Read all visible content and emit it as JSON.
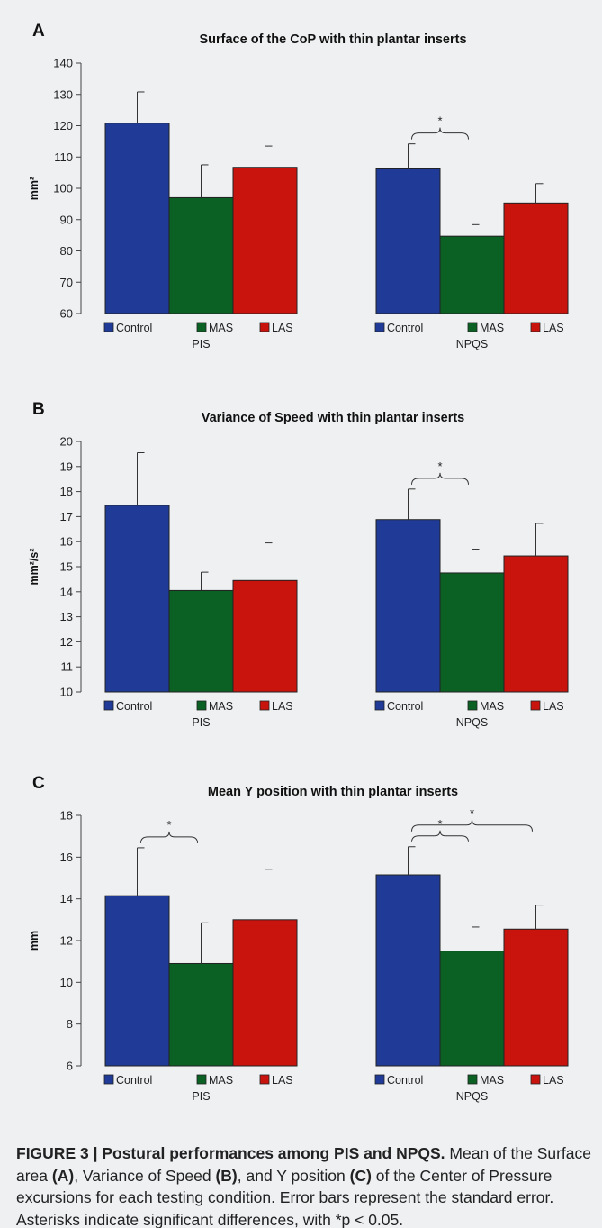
{
  "chart_data": [
    {
      "type": "bar",
      "panel_letter": "A",
      "title": "Surface of the CoP with thin plantar inserts",
      "ylabel": "mm²",
      "ylim": [
        60,
        140
      ],
      "yticks": [
        60,
        70,
        80,
        90,
        100,
        110,
        120,
        130,
        140
      ],
      "groups": [
        {
          "name": "PIS",
          "categories": [
            "Control",
            "MAS",
            "LAS"
          ],
          "values": [
            120.8,
            97.0,
            106.7
          ],
          "errors": [
            10.0,
            10.5,
            6.8
          ]
        },
        {
          "name": "NPQS",
          "categories": [
            "Control",
            "MAS",
            "LAS"
          ],
          "values": [
            106.2,
            84.7,
            95.3
          ],
          "errors": [
            8.0,
            3.7,
            6.2
          ]
        }
      ],
      "significance": [
        {
          "group": "NPQS",
          "from": "Control",
          "to": "MAS",
          "label": "*"
        }
      ]
    },
    {
      "type": "bar",
      "panel_letter": "B",
      "title": "Variance of Speed with thin plantar inserts",
      "ylabel": "mm²/s²",
      "ylim": [
        10,
        20
      ],
      "yticks": [
        10,
        11,
        12,
        13,
        14,
        15,
        16,
        17,
        18,
        19,
        20
      ],
      "groups": [
        {
          "name": "PIS",
          "categories": [
            "Control",
            "MAS",
            "LAS"
          ],
          "values": [
            17.45,
            14.05,
            14.45
          ],
          "errors": [
            2.1,
            0.73,
            1.5
          ]
        },
        {
          "name": "NPQS",
          "categories": [
            "Control",
            "MAS",
            "LAS"
          ],
          "values": [
            16.88,
            14.75,
            15.43
          ],
          "errors": [
            1.22,
            0.95,
            1.3
          ]
        }
      ],
      "significance": [
        {
          "group": "NPQS",
          "from": "Control",
          "to": "MAS",
          "label": "*"
        }
      ]
    },
    {
      "type": "bar",
      "panel_letter": "C",
      "title": "Mean Y position with thin plantar inserts",
      "ylabel": "mm",
      "ylim": [
        6,
        18
      ],
      "yticks": [
        6,
        8,
        10,
        12,
        14,
        16,
        18
      ],
      "groups": [
        {
          "name": "PIS",
          "categories": [
            "Control",
            "MAS",
            "LAS"
          ],
          "values": [
            14.15,
            10.9,
            13.0
          ],
          "errors": [
            2.3,
            1.95,
            2.42
          ]
        },
        {
          "name": "NPQS",
          "categories": [
            "Control",
            "MAS",
            "LAS"
          ],
          "values": [
            15.15,
            11.5,
            12.55
          ],
          "errors": [
            1.35,
            1.15,
            1.15
          ]
        }
      ],
      "significance": [
        {
          "group": "PIS",
          "from": "Control",
          "to": "MAS",
          "label": "*"
        },
        {
          "group": "NPQS",
          "from": "Control",
          "to": "MAS",
          "label": "*"
        },
        {
          "group": "NPQS",
          "from": "Control",
          "to": "LAS",
          "label": "*"
        }
      ]
    }
  ],
  "series_colors": {
    "Control": "#1f3b97",
    "MAS": "#0b6124",
    "LAS": "#c9140e"
  },
  "caption": {
    "bold": "FIGURE 3 | Postural performances among PIS and NPQS.",
    "text1": " Mean of the Surface area ",
    "refA": "(A)",
    "text2": ", Variance of Speed ",
    "refB": "(B)",
    "text3": ", and Y position ",
    "refC": "(C)",
    "text4": " of the Center of Pressure excursions for each testing condition. Error bars represent the standard error. Asterisks indicate significant differences, with ",
    "pvalue": "*p < 0.05."
  }
}
